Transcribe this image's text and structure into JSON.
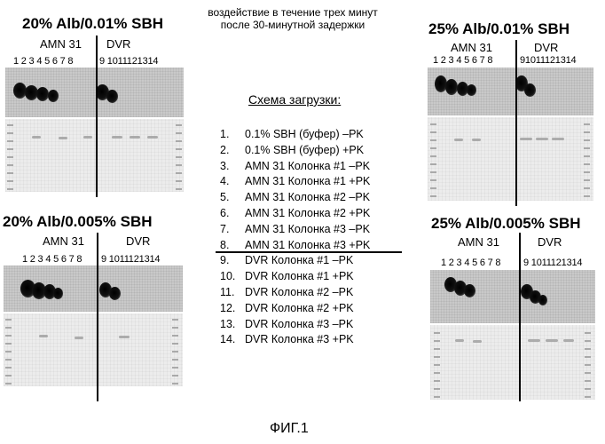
{
  "header_note": {
    "line1": "воздействие в течение трех минут",
    "line2": "после 30-минутной задержки"
  },
  "panels": [
    {
      "id": "tl",
      "title": "20% Alb/0.01% SBH",
      "left_label": "AMN 31",
      "right_label": "DVR",
      "lanes_left": "1 2 3 4 5 6 7 8",
      "lanes_right": "9 1011121314"
    },
    {
      "id": "bl",
      "title": "20% Alb/0.005% SBH",
      "left_label": "AMN 31",
      "right_label": "DVR",
      "lanes_left": "1 2 3 4 5 6 7 8",
      "lanes_right": "9 1011121314"
    },
    {
      "id": "tr",
      "title": "25% Alb/0.01% SBH",
      "left_label": "AMN 31",
      "right_label": "DVR",
      "lanes_left": "1 2 3 4 5 6 7 8",
      "lanes_right": "91011121314"
    },
    {
      "id": "br",
      "title": "25% Alb/0.005% SBH",
      "left_label": "AMN 31",
      "right_label": "DVR",
      "lanes_left": "1 2 3 4 5 6 7 8",
      "lanes_right": "9 1011121314"
    }
  ],
  "scheme": {
    "title": "Схема загрузки:",
    "items": [
      {
        "num": "1.",
        "text": "0.1% SBH (буфер) –PK"
      },
      {
        "num": "2.",
        "text": "0.1% SBH (буфер) +PK"
      },
      {
        "num": "3.",
        "text": "AMN 31 Колонка #1 –PK"
      },
      {
        "num": "4.",
        "text": "AMN 31 Колонка #1 +PK"
      },
      {
        "num": "5.",
        "text": "AMN 31 Колонка #2 –PK"
      },
      {
        "num": "6.",
        "text": "AMN 31 Колонка #2 +PK"
      },
      {
        "num": "7.",
        "text": "AMN 31 Колонка #3 –PK"
      },
      {
        "num": "8.",
        "text": "AMN 31 Колонка #3 +PK"
      },
      {
        "num": "9.",
        "text": "DVR Колонка #1 –PK"
      },
      {
        "num": "10.",
        "text": "DVR Колонка #1 +PK"
      },
      {
        "num": "11.",
        "text": "DVR Колонка #2 –PK"
      },
      {
        "num": "12.",
        "text": "DVR Колонка #2 +PK"
      },
      {
        "num": "13.",
        "text": "DVR Колонка #3 –PK"
      },
      {
        "num": "14.",
        "text": "DVR Колонка #3 +PK"
      }
    ]
  },
  "figure_caption": "ФИГ.1"
}
